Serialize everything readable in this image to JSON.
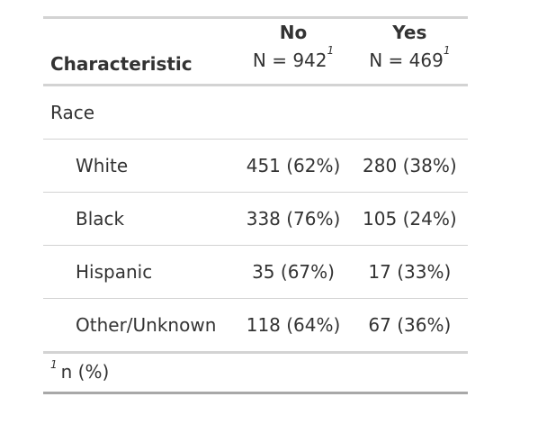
{
  "table": {
    "header": {
      "characteristic_label": "Characteristic",
      "groups": [
        {
          "name": "No",
          "n_text": "N = 942",
          "footnote_mark": "1"
        },
        {
          "name": "Yes",
          "n_text": "N = 469",
          "footnote_mark": "1"
        }
      ]
    },
    "section": {
      "label": "Race"
    },
    "rows": [
      {
        "label": "White",
        "no": "451 (62%)",
        "yes": "280 (38%)"
      },
      {
        "label": "Black",
        "no": "338 (76%)",
        "yes": "105 (24%)"
      },
      {
        "label": "Hispanic",
        "no": "35 (67%)",
        "yes": "17 (33%)"
      },
      {
        "label": "Other/Unknown",
        "no": "118 (64%)",
        "yes": "67 (36%)"
      }
    ],
    "footnote": {
      "mark": "1",
      "text": "n (%)"
    }
  }
}
